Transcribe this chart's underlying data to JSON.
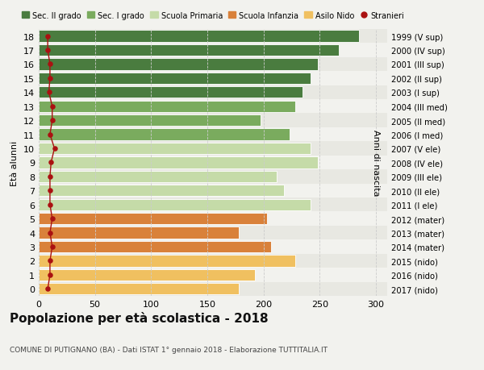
{
  "ages": [
    18,
    17,
    16,
    15,
    14,
    13,
    12,
    11,
    10,
    9,
    8,
    7,
    6,
    5,
    4,
    3,
    2,
    1,
    0
  ],
  "years": [
    "1999 (V sup)",
    "2000 (IV sup)",
    "2001 (III sup)",
    "2002 (II sup)",
    "2003 (I sup)",
    "2004 (III med)",
    "2005 (II med)",
    "2006 (I med)",
    "2007 (V ele)",
    "2008 (IV ele)",
    "2009 (III ele)",
    "2010 (II ele)",
    "2011 (I ele)",
    "2012 (mater)",
    "2013 (mater)",
    "2014 (mater)",
    "2015 (nido)",
    "2016 (nido)",
    "2017 (nido)"
  ],
  "values": [
    285,
    267,
    248,
    242,
    235,
    228,
    197,
    223,
    242,
    248,
    212,
    218,
    242,
    203,
    178,
    207,
    228,
    192,
    178
  ],
  "stranieri": [
    8,
    8,
    10,
    10,
    9,
    12,
    12,
    10,
    14,
    11,
    10,
    10,
    10,
    12,
    10,
    12,
    10,
    10,
    8
  ],
  "bar_colors": [
    "#4a7c3f",
    "#4a7c3f",
    "#4a7c3f",
    "#4a7c3f",
    "#4a7c3f",
    "#7aab5e",
    "#7aab5e",
    "#7aab5e",
    "#c5dba8",
    "#c5dba8",
    "#c5dba8",
    "#c5dba8",
    "#c5dba8",
    "#d9813a",
    "#d9813a",
    "#d9813a",
    "#f0c060",
    "#f0c060",
    "#f0c060"
  ],
  "legend_colors": [
    "#4a7c3f",
    "#7aab5e",
    "#c5dba8",
    "#d9813a",
    "#f0c060"
  ],
  "legend_labels": [
    "Sec. II grado",
    "Sec. I grado",
    "Scuola Primaria",
    "Scuola Infanzia",
    "Asilo Nido"
  ],
  "stranieri_color": "#aa1111",
  "title": "Popolazione per età scolastica - 2018",
  "subtitle": "COMUNE DI PUTIGNANO (BA) - Dati ISTAT 1° gennaio 2018 - Elaborazione TUTTITALIA.IT",
  "ylabel_left": "Età alunni",
  "ylabel_right": "Anni di nascita",
  "xlim": [
    0,
    310
  ],
  "xticks": [
    0,
    50,
    100,
    150,
    200,
    250,
    300
  ],
  "bg_color": "#f2f2ee",
  "row_alt_color": "#e8e8e2"
}
